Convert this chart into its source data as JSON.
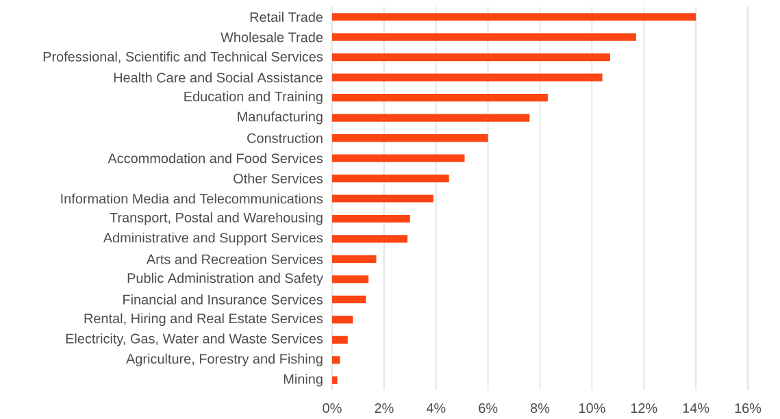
{
  "chart_data": {
    "type": "bar",
    "orientation": "horizontal",
    "categories": [
      "Retail Trade",
      "Wholesale Trade",
      "Professional, Scientific and Technical Services",
      "Health Care and Social Assistance",
      "Education and Training",
      "Manufacturing",
      "Construction",
      "Accommodation and Food Services",
      "Other Services",
      "Information Media and Telecommunications",
      "Transport, Postal and Warehousing",
      "Administrative and Support Services",
      "Arts and Recreation Services",
      "Public Administration and Safety",
      "Financial and Insurance Services",
      "Rental, Hiring and Real Estate Services",
      "Electricity, Gas, Water and Waste Services",
      "Agriculture, Forestry and Fishing",
      "Mining"
    ],
    "values": [
      14.0,
      11.7,
      10.7,
      10.4,
      8.3,
      7.6,
      6.0,
      5.1,
      4.5,
      3.9,
      3.0,
      2.9,
      1.7,
      1.4,
      1.3,
      0.8,
      0.6,
      0.3,
      0.2
    ],
    "color": "#fc4512",
    "xlim": [
      0,
      16
    ],
    "xticks": [
      {
        "value": 0,
        "label": "0%"
      },
      {
        "value": 2,
        "label": "2%"
      },
      {
        "value": 4,
        "label": "4%"
      },
      {
        "value": 6,
        "label": "6%"
      },
      {
        "value": 8,
        "label": "8%"
      },
      {
        "value": 10,
        "label": "10%"
      },
      {
        "value": 12,
        "label": "12%"
      },
      {
        "value": 14,
        "label": "14%"
      },
      {
        "value": 16,
        "label": "16%"
      }
    ],
    "grid": "x"
  }
}
